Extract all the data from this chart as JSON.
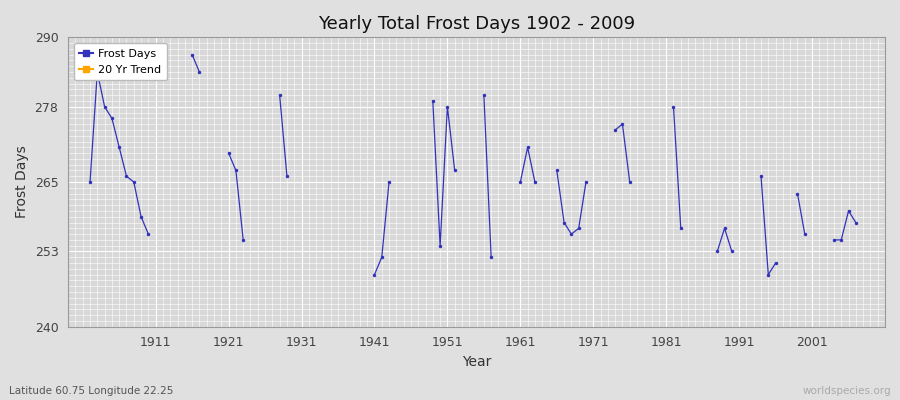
{
  "title": "Yearly Total Frost Days 1902 - 2009",
  "xlabel": "Year",
  "ylabel": "Frost Days",
  "lat_lon_label": "Latitude 60.75 Longitude 22.25",
  "watermark": "worldspecies.org",
  "ylim": [
    240,
    290
  ],
  "xlim": [
    1899,
    2011
  ],
  "yticks": [
    240,
    253,
    265,
    278,
    290
  ],
  "xticks": [
    1911,
    1921,
    1931,
    1941,
    1951,
    1961,
    1971,
    1981,
    1991,
    2001
  ],
  "line_color": "#3333bb",
  "bg_color": "#e0e0e0",
  "plot_bg_color": "#d8d8d8",
  "grid_color": "#ffffff",
  "segments": [
    [
      1902,
      1903,
      1904,
      1905,
      1906,
      1907,
      1908,
      1909,
      1910
    ],
    [
      1916,
      1917
    ],
    [
      1921,
      1922,
      1923
    ],
    [
      1928,
      1929
    ],
    [
      1941,
      1942,
      1943
    ],
    [
      1949,
      1950,
      1951,
      1952
    ],
    [
      1956,
      1957
    ],
    [
      1961,
      1962,
      1963
    ],
    [
      1966,
      1967,
      1968,
      1969,
      1970
    ],
    [
      1974,
      1975,
      1976
    ],
    [
      1982,
      1983
    ],
    [
      1988,
      1989,
      1990
    ],
    [
      1994,
      1995,
      1996
    ],
    [
      1999,
      2000
    ],
    [
      2004,
      2005,
      2006,
      2007
    ]
  ],
  "segment_values": [
    [
      265,
      284,
      278,
      276,
      271,
      266,
      265,
      259,
      256
    ],
    [
      287,
      284
    ],
    [
      270,
      267,
      255
    ],
    [
      280,
      266
    ],
    [
      249,
      252,
      265
    ],
    [
      279,
      254,
      278,
      267
    ],
    [
      280,
      252
    ],
    [
      265,
      271,
      265
    ],
    [
      267,
      258,
      256,
      257,
      265
    ],
    [
      274,
      275,
      265
    ],
    [
      278,
      257
    ],
    [
      253,
      257,
      253
    ],
    [
      266,
      249,
      251
    ],
    [
      263,
      256
    ],
    [
      255,
      255,
      260,
      258
    ]
  ],
  "isolated_points": {
    "years": [
      1956,
      1982
    ],
    "values": [
      280,
      278
    ]
  }
}
